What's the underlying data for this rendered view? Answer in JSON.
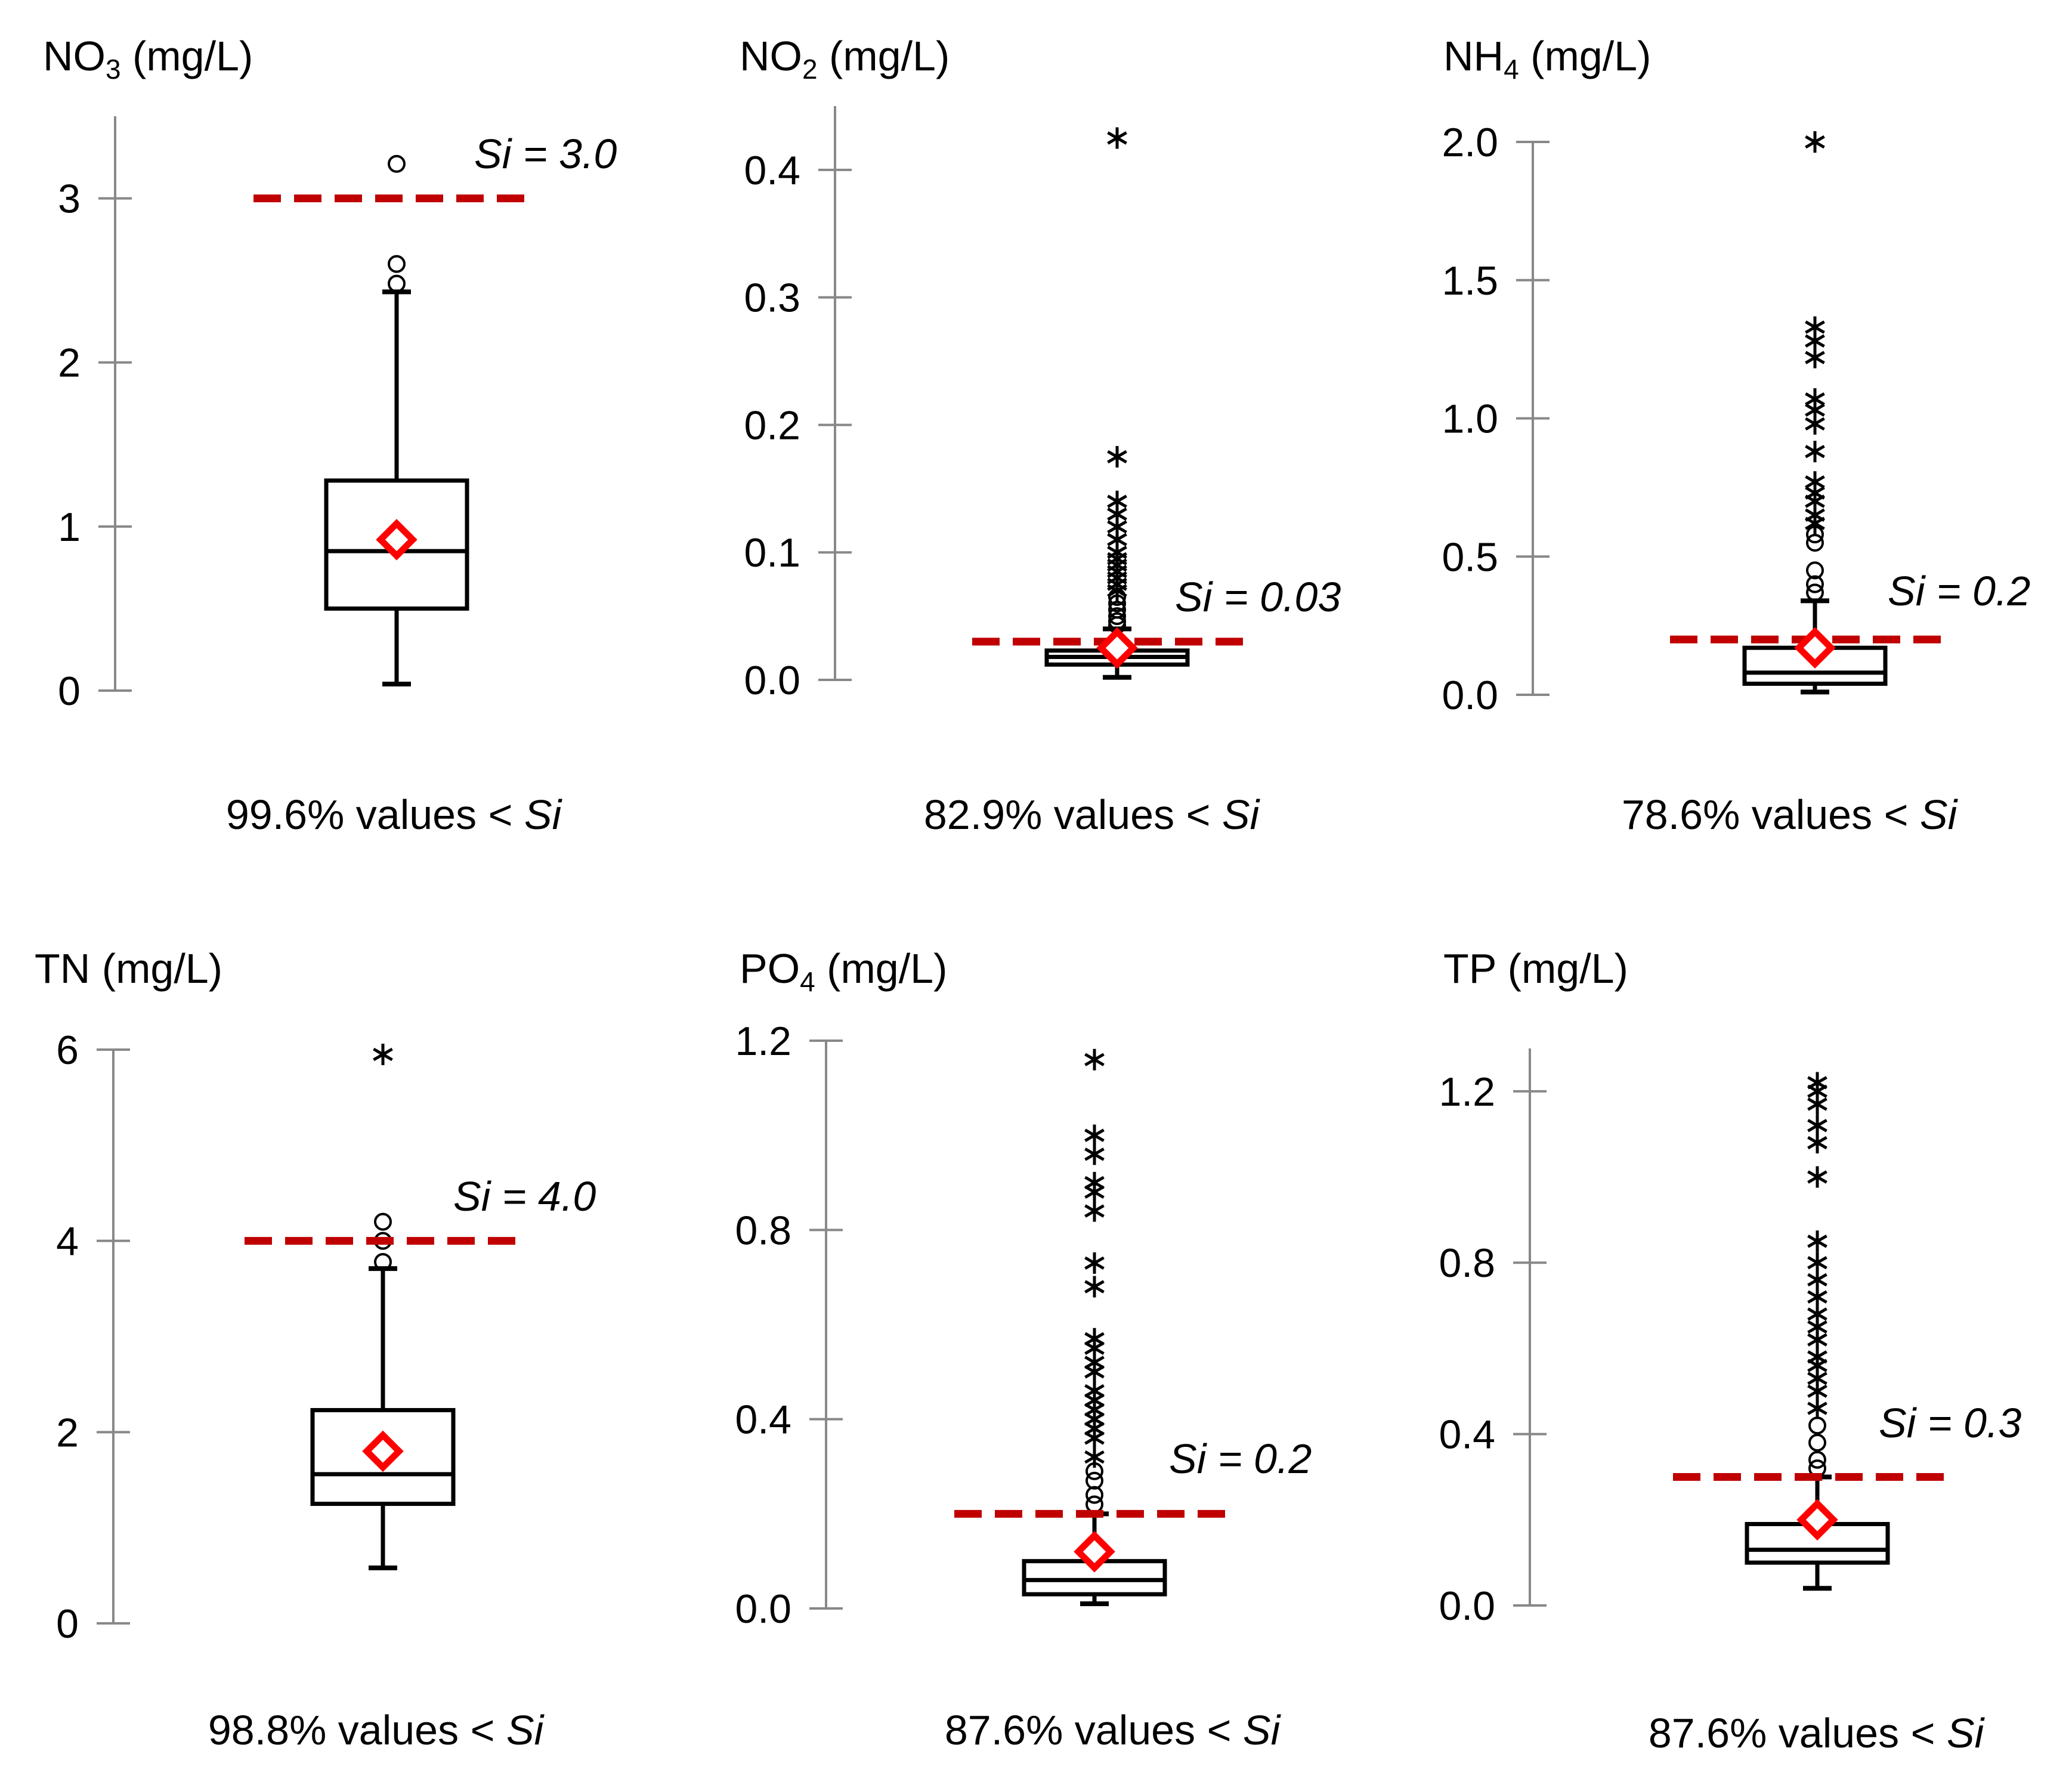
{
  "chart_data": [
    {
      "type": "box",
      "title_main": "NO",
      "title_sub": "3",
      "title_unit": " (mg/L)",
      "ylim": [
        0,
        3.5
      ],
      "yticks": [
        "0",
        "1",
        "2",
        "3"
      ],
      "ytick_values": [
        0,
        1,
        2,
        3
      ],
      "box": {
        "whisker_low": 0.04,
        "q1": 0.5,
        "median": 0.85,
        "q3": 1.28,
        "whisker_high": 2.43,
        "mean": 0.92
      },
      "outliers_circle": [
        2.48,
        2.6,
        3.21
      ],
      "outliers_star": [],
      "threshold": 3.0,
      "threshold_label_si": "Si",
      "threshold_label_value": " = 3.0",
      "caption_text": "99.6% values < ",
      "caption_si": "Si"
    },
    {
      "type": "box",
      "title_main": "NO",
      "title_sub": "2",
      "title_unit": " (mg/L)",
      "ylim": [
        0,
        0.45
      ],
      "yticks": [
        "0.0",
        "0.1",
        "0.2",
        "0.3",
        "0.4"
      ],
      "ytick_values": [
        0,
        0.1,
        0.2,
        0.3,
        0.4
      ],
      "box": {
        "whisker_low": 0.002,
        "q1": 0.012,
        "median": 0.018,
        "q3": 0.023,
        "whisker_high": 0.04,
        "mean": 0.025
      },
      "outliers_circle": [
        0.043,
        0.046,
        0.05,
        0.055,
        0.06,
        0.065
      ],
      "outliers_star": [
        0.07,
        0.075,
        0.08,
        0.085,
        0.09,
        0.095,
        0.1,
        0.11,
        0.12,
        0.13,
        0.14,
        0.175,
        0.425
      ],
      "threshold": 0.03,
      "threshold_label_si": "Si",
      "threshold_label_value": " = 0.03",
      "caption_text": "82.9% values < ",
      "caption_si": "Si"
    },
    {
      "type": "box",
      "title_main": "NH",
      "title_sub": "4",
      "title_unit": " (mg/L)",
      "ylim": [
        0,
        2.0
      ],
      "yticks": [
        "0.0",
        "0.5",
        "1.0",
        "1.5",
        "2.0"
      ],
      "ytick_values": [
        0,
        0.5,
        1,
        1.5,
        2
      ],
      "box": {
        "whisker_low": 0.01,
        "q1": 0.04,
        "median": 0.08,
        "q3": 0.17,
        "whisker_high": 0.34,
        "mean": 0.17
      },
      "outliers_circle": [
        0.37,
        0.4,
        0.45,
        0.55,
        0.58
      ],
      "outliers_star": [
        0.62,
        0.65,
        0.7,
        0.73,
        0.77,
        0.88,
        0.98,
        1.03,
        1.07,
        1.22,
        1.28,
        1.33,
        2.0
      ],
      "threshold": 0.2,
      "threshold_label_si": "Si",
      "threshold_label_value": " = 0.2",
      "caption_text": "78.6% values < ",
      "caption_si": "Si"
    },
    {
      "type": "box",
      "title_main": "TN",
      "title_sub": "",
      "title_unit": " (mg/L)",
      "ylim": [
        0,
        6.0
      ],
      "yticks": [
        "0",
        "2",
        "4",
        "6"
      ],
      "ytick_values": [
        0,
        2,
        4,
        6
      ],
      "box": {
        "whisker_low": 0.58,
        "q1": 1.25,
        "median": 1.56,
        "q3": 2.23,
        "whisker_high": 3.71,
        "mean": 1.8
      },
      "outliers_circle": [
        3.78,
        4.0,
        4.2
      ],
      "outliers_star": [
        5.95
      ],
      "threshold": 4.0,
      "threshold_label_si": "Si",
      "threshold_label_value": " = 4.0",
      "caption_text": "98.8% values < ",
      "caption_si": "Si"
    },
    {
      "type": "box",
      "title_main": "PO",
      "title_sub": "4",
      "title_unit": " (mg/L)",
      "ylim": [
        0,
        1.2
      ],
      "yticks": [
        "0.0",
        "0.4",
        "0.8",
        "1.2"
      ],
      "ytick_values": [
        0,
        0.4,
        0.8,
        1.2
      ],
      "box": {
        "whisker_low": 0.01,
        "q1": 0.03,
        "median": 0.06,
        "q3": 0.1,
        "whisker_high": 0.2,
        "mean": 0.12
      },
      "outliers_circle": [
        0.22,
        0.24,
        0.27,
        0.29
      ],
      "outliers_star": [
        0.32,
        0.36,
        0.38,
        0.4,
        0.42,
        0.44,
        0.46,
        0.5,
        0.52,
        0.55,
        0.57,
        0.68,
        0.73,
        0.84,
        0.88,
        0.9,
        0.96,
        1.0,
        1.16
      ],
      "threshold": 0.2,
      "threshold_label_si": "Si",
      "threshold_label_value": " = 0.2",
      "caption_text": "87.6% values < ",
      "caption_si": "Si"
    },
    {
      "type": "box",
      "title_main": "TP",
      "title_sub": "",
      "title_unit": " (mg/L)",
      "ylim": [
        0,
        1.3
      ],
      "yticks": [
        "0.0",
        "0.4",
        "0.8",
        "1.2"
      ],
      "ytick_values": [
        0,
        0.4,
        0.8,
        1.2
      ],
      "box": {
        "whisker_low": 0.04,
        "q1": 0.1,
        "median": 0.13,
        "q3": 0.19,
        "whisker_high": 0.3,
        "mean": 0.2
      },
      "outliers_circle": [
        0.32,
        0.34,
        0.38,
        0.42
      ],
      "outliers_star": [
        0.46,
        0.5,
        0.53,
        0.56,
        0.58,
        0.62,
        0.65,
        0.68,
        0.72,
        0.76,
        0.8,
        0.85,
        1.0,
        1.08,
        1.12,
        1.17,
        1.2,
        1.22
      ],
      "threshold": 0.3,
      "threshold_label_si": "Si",
      "threshold_label_value": " = 0.3",
      "caption_text": "87.6% values < ",
      "caption_si": "Si"
    }
  ],
  "colors": {
    "axis": "#888888",
    "box": "#000000",
    "threshold": "#c00000",
    "mean_marker": "#ff0000"
  }
}
